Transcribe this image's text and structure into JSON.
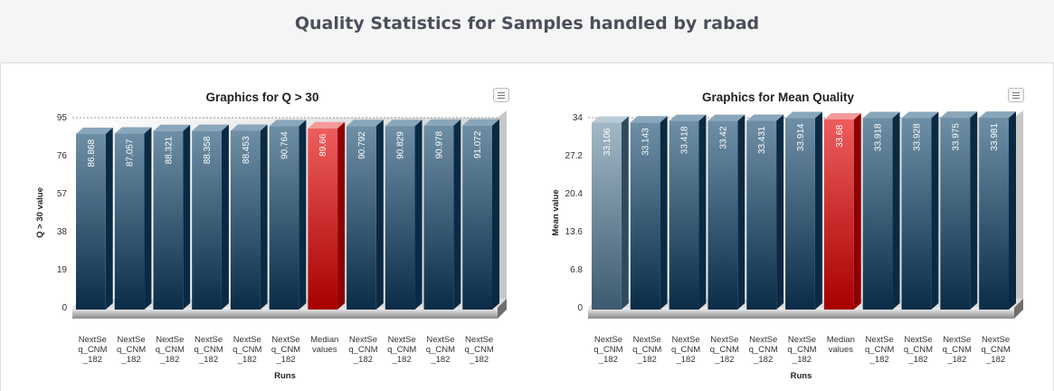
{
  "page": {
    "title": "Quality Statistics for Samples handled by rabad"
  },
  "colors": {
    "bar_top": "#6e8fa6",
    "bar_bottom": "#0b2c47",
    "bar_side": "#0a2a44",
    "median_top": "#ee5d5d",
    "median_bottom": "#a80000",
    "median_side": "#8e0000",
    "first_bar_top": "#a2b8c6",
    "first_bar_bottom": "#3c5a70"
  },
  "icons": {
    "chart_menu": "hamburger-menu-icon"
  },
  "chart_data": [
    {
      "type": "bar",
      "title": "Graphics for Q > 30",
      "xlabel": "Runs",
      "ylabel": "Q > 30 value",
      "ylim": [
        0,
        95
      ],
      "yticks": [
        "0",
        "19",
        "38",
        "57",
        "76",
        "95"
      ],
      "categories": [
        [
          "NextSe",
          "q_CNM",
          "_182"
        ],
        [
          "NextSe",
          "q_CNM",
          "_182"
        ],
        [
          "NextSe",
          "q_CNM",
          "_182"
        ],
        [
          "NextSe",
          "q_CNM",
          "_182"
        ],
        [
          "NextSe",
          "q_CNM",
          "_182"
        ],
        [
          "NextSe",
          "q_CNM",
          "_182"
        ],
        [
          "Median",
          "values"
        ],
        [
          "NextSe",
          "q_CNM",
          "_182"
        ],
        [
          "NextSe",
          "q_CNM",
          "_182"
        ],
        [
          "NextSe",
          "q_CNM",
          "_182"
        ],
        [
          "NextSe",
          "q_CNM",
          "_182"
        ]
      ],
      "values": [
        86.868,
        87.057,
        88.321,
        88.358,
        88.453,
        90.764,
        89.66,
        90.792,
        90.829,
        90.978,
        91.072
      ],
      "value_labels": [
        "86.868",
        "87.057",
        "88.321",
        "88.358",
        "88.453",
        "90.764",
        "89.66",
        "90.792",
        "90.829",
        "90.978",
        "91.072"
      ],
      "highlight_index": 6,
      "grid": false,
      "legend": "none"
    },
    {
      "type": "bar",
      "title": "Graphics for Mean Quality",
      "xlabel": "Runs",
      "ylabel": "Mean value",
      "ylim": [
        0,
        34
      ],
      "yticks": [
        "0",
        "6.8",
        "13.6",
        "20.4",
        "27.2",
        "34"
      ],
      "categories": [
        [
          "NextSe",
          "q_CNM",
          "_182"
        ],
        [
          "NextSe",
          "q_CNM",
          "_182"
        ],
        [
          "NextSe",
          "q_CNM",
          "_182"
        ],
        [
          "NextSe",
          "q_CNM",
          "_182"
        ],
        [
          "NextSe",
          "q_CNM",
          "_182"
        ],
        [
          "NextSe",
          "q_CNM",
          "_182"
        ],
        [
          "Median",
          "values"
        ],
        [
          "NextSe",
          "q_CNM",
          "_182"
        ],
        [
          "NextSe",
          "q_CNM",
          "_182"
        ],
        [
          "NextSe",
          "q_CNM",
          "_182"
        ],
        [
          "NextSe",
          "q_CNM",
          "_182"
        ]
      ],
      "values": [
        33.106,
        33.143,
        33.418,
        33.42,
        33.431,
        33.914,
        33.68,
        33.918,
        33.928,
        33.975,
        33.981
      ],
      "value_labels": [
        "33.106",
        "33.143",
        "33.418",
        "33.42",
        "33.431",
        "33.914",
        "33.68",
        "33.918",
        "33.928",
        "33.975",
        "33.981"
      ],
      "highlight_index": 6,
      "grid": false,
      "legend": "none"
    }
  ]
}
